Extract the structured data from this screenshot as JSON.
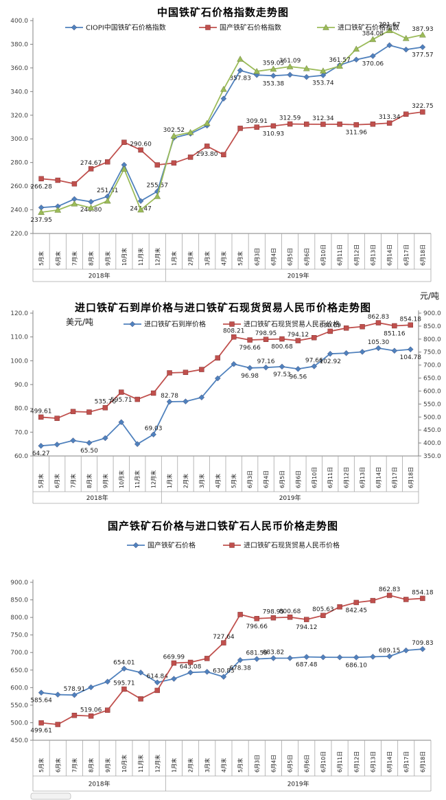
{
  "categories": [
    "5月末",
    "6月末",
    "7月末",
    "8月末",
    "9月末",
    "10月末",
    "11月末",
    "12月末",
    "1月末",
    "2月末",
    "3月末",
    "4月末",
    "5月末",
    "6月3日",
    "6月4日",
    "6月5日",
    "6月6日",
    "6月10日",
    "6月11日",
    "6月12日",
    "6月13日",
    "6月14日",
    "6月17日",
    "6月18日"
  ],
  "year_groups": [
    {
      "label": "2018年",
      "count": 8
    },
    {
      "label": "2019年",
      "count": 16
    }
  ],
  "colors": {
    "blue": "#4f81bd",
    "red": "#c0504d",
    "green": "#9bbb59",
    "axis": "#808080",
    "grid": "#a6a6a6",
    "tick_text": "#404040",
    "label_text": "#1a1a1a"
  },
  "chart_data": [
    {
      "id": "index-trend",
      "type": "line",
      "title": "中国铁矿石价格指数走势图",
      "ylim": [
        220,
        400
      ],
      "y_axis": {
        "min": 220,
        "max": 400,
        "step": 20
      },
      "legend_position": "top-inside",
      "grid": false,
      "series": [
        {
          "name": "CIOPI中国铁矿石价格指数",
          "color": "#4f81bd",
          "marker": "diamond",
          "axis": "left",
          "values": [
            241.93,
            242.9,
            249.1,
            246.8,
            251.31,
            278.0,
            247.47,
            255.57,
            300.9,
            304.4,
            311.2,
            334.0,
            357.83,
            354.0,
            353.38,
            354.2,
            352.3,
            353.74,
            362.4,
            367.0,
            370.06,
            379.2,
            375.5,
            377.57
          ],
          "labeled": [
            [
              3,
              "b"
            ],
            [
              4,
              "a"
            ],
            [
              6,
              "b"
            ],
            [
              7,
              "a"
            ],
            [
              12,
              "b"
            ],
            [
              14,
              "b"
            ],
            [
              17,
              "b"
            ],
            [
              20,
              "b"
            ],
            [
              23,
              "b"
            ]
          ]
        },
        {
          "name": "国产铁矿石价格指数",
          "color": "#c0504d",
          "marker": "square",
          "axis": "left",
          "values": [
            266.28,
            265.0,
            262.0,
            274.67,
            280.5,
            297.1,
            290.6,
            278.0,
            279.6,
            284.5,
            293.8,
            286.6,
            308.9,
            309.91,
            310.93,
            312.59,
            312.4,
            312.34,
            312.4,
            311.96,
            312.5,
            313.34,
            320.9,
            322.75
          ],
          "labeled": [
            [
              0,
              "b"
            ],
            [
              3,
              "a"
            ],
            [
              6,
              "a"
            ],
            [
              10,
              "b"
            ],
            [
              13,
              "a"
            ],
            [
              14,
              "b"
            ],
            [
              15,
              "a"
            ],
            [
              17,
              "a"
            ],
            [
              19,
              "b"
            ],
            [
              21,
              "a"
            ],
            [
              23,
              "a"
            ]
          ]
        },
        {
          "name": "进口铁矿石价格指数",
          "color": "#9bbb59",
          "marker": "triangle",
          "axis": "left",
          "values": [
            237.95,
            239.8,
            245.1,
            241.7,
            247.5,
            274.5,
            240.0,
            251.4,
            302.52,
            305.5,
            313.2,
            342.0,
            367.5,
            357.1,
            359.05,
            361.09,
            359.5,
            357.5,
            361.57,
            376.0,
            384.08,
            391.67,
            385.0,
            387.93
          ],
          "labeled": [
            [
              0,
              "b"
            ],
            [
              8,
              "a"
            ],
            [
              14,
              "a"
            ],
            [
              15,
              "a"
            ],
            [
              18,
              "a"
            ],
            [
              20,
              "a"
            ],
            [
              21,
              "a"
            ],
            [
              23,
              "a"
            ]
          ]
        }
      ]
    },
    {
      "id": "import-cif-rmb-trend",
      "type": "line",
      "title": "进口铁矿石到岸价格与进口铁矿石现货贸易人民币价格走势图",
      "left_axis_unit": "美元/吨",
      "right_axis_unit": "元/吨",
      "ylim": [
        60,
        120
      ],
      "y2lim": [
        350,
        900
      ],
      "y_axis": {
        "min": 60,
        "max": 120,
        "step": 10
      },
      "y2_axis": {
        "min": 350,
        "max": 900,
        "step": 50
      },
      "legend_position": "top-inside",
      "grid": false,
      "series": [
        {
          "name": "进口铁矿石到岸价格",
          "color": "#4f81bd",
          "marker": "diamond",
          "axis": "left",
          "values": [
            64.27,
            64.8,
            66.5,
            65.5,
            67.5,
            74.2,
            65.0,
            69.03,
            82.78,
            82.9,
            84.6,
            92.6,
            98.6,
            96.98,
            97.16,
            97.53,
            96.56,
            97.66,
            102.92,
            103.2,
            103.74,
            105.3,
            104.2,
            104.78
          ],
          "labeled": [
            [
              0,
              "b"
            ],
            [
              3,
              "b"
            ],
            [
              7,
              "a"
            ],
            [
              8,
              "a"
            ],
            [
              13,
              "b"
            ],
            [
              14,
              "a"
            ],
            [
              15,
              "b"
            ],
            [
              16,
              "b"
            ],
            [
              17,
              "a"
            ],
            [
              18,
              "b"
            ],
            [
              21,
              "a"
            ],
            [
              23,
              "b"
            ]
          ]
        },
        {
          "name": "进口铁矿石现货贸易人民币价格",
          "color": "#c0504d",
          "marker": "square",
          "axis": "right",
          "values": [
            499.61,
            495.0,
            521.0,
            519.06,
            535.76,
            595.71,
            568.0,
            592.0,
            669.99,
            672.0,
            683.0,
            727.64,
            808.21,
            796.66,
            798.95,
            800.68,
            794.12,
            805.63,
            830.09,
            842.45,
            848.0,
            862.83,
            851.16,
            854.18
          ],
          "labeled": [
            [
              0,
              "a"
            ],
            [
              4,
              "a"
            ],
            [
              5,
              "b"
            ],
            [
              12,
              "a"
            ],
            [
              13,
              "b"
            ],
            [
              14,
              "a"
            ],
            [
              15,
              "b"
            ],
            [
              16,
              "a"
            ],
            [
              18,
              "a"
            ],
            [
              21,
              "a"
            ],
            [
              22,
              "b"
            ],
            [
              23,
              "a"
            ]
          ]
        }
      ]
    },
    {
      "id": "domestic-vs-import-rmb-trend",
      "type": "line",
      "title": "国产铁矿石价格与进口铁矿石人民币价格走势图",
      "ylim": [
        450,
        900
      ],
      "y_axis": {
        "min": 450,
        "max": 900,
        "step": 50
      },
      "legend_position": "top-inside",
      "grid": false,
      "series": [
        {
          "name": "国产铁矿石价格",
          "color": "#4f81bd",
          "marker": "diamond",
          "axis": "left",
          "values": [
            585.64,
            580.0,
            578.91,
            601.0,
            617.0,
            654.01,
            643.0,
            614.84,
            625.0,
            643.08,
            645.0,
            630.83,
            678.38,
            681.59,
            683.82,
            684.0,
            687.48,
            686.5,
            686.3,
            686.1,
            688.0,
            689.15,
            706.0,
            709.83
          ],
          "labeled": [
            [
              0,
              "b"
            ],
            [
              2,
              "a"
            ],
            [
              5,
              "a"
            ],
            [
              7,
              "a"
            ],
            [
              9,
              "a"
            ],
            [
              11,
              "a"
            ],
            [
              12,
              "b"
            ],
            [
              13,
              "a"
            ],
            [
              14,
              "a"
            ],
            [
              16,
              "b"
            ],
            [
              19,
              "b"
            ],
            [
              21,
              "a"
            ],
            [
              23,
              "a"
            ]
          ]
        },
        {
          "name": "进口铁矿石现货贸易人民币价格",
          "color": "#c0504d",
          "marker": "square",
          "axis": "left",
          "values": [
            499.61,
            495.0,
            521.0,
            519.06,
            535.76,
            595.71,
            568.0,
            592.0,
            669.99,
            672.0,
            683.0,
            727.64,
            808.21,
            796.66,
            798.95,
            800.68,
            794.12,
            805.63,
            830.09,
            842.45,
            848.0,
            862.83,
            851.16,
            854.18
          ],
          "labeled": [
            [
              0,
              "b"
            ],
            [
              3,
              "a"
            ],
            [
              5,
              "a"
            ],
            [
              8,
              "a"
            ],
            [
              11,
              "a"
            ],
            [
              13,
              "b"
            ],
            [
              14,
              "a"
            ],
            [
              15,
              "a"
            ],
            [
              16,
              "b"
            ],
            [
              17,
              "a"
            ],
            [
              19,
              "b"
            ],
            [
              21,
              "a"
            ],
            [
              23,
              "a"
            ]
          ]
        }
      ]
    }
  ]
}
